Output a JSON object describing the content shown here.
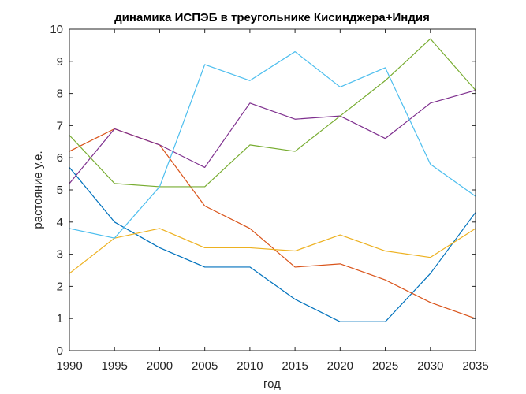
{
  "chart_data": {
    "type": "line",
    "title": "динамика ИСПЭБ в треугольнике Кисинджера+Индия",
    "xlabel": "год",
    "ylabel": "растояние у.е.",
    "xlim": [
      1990,
      2035
    ],
    "ylim": [
      0,
      10
    ],
    "x": [
      1990,
      1995,
      2000,
      2005,
      2010,
      2015,
      2020,
      2025,
      2030,
      2035
    ],
    "x_ticks": [
      1990,
      1995,
      2000,
      2005,
      2010,
      2015,
      2020,
      2025,
      2030,
      2035
    ],
    "y_ticks": [
      0,
      1,
      2,
      3,
      4,
      5,
      6,
      7,
      8,
      9,
      10
    ],
    "grid": false,
    "box": true,
    "series": [
      {
        "color": "#0072BD",
        "values": [
          5.7,
          4.0,
          3.2,
          2.6,
          2.6,
          1.6,
          0.9,
          0.9,
          2.4,
          4.3
        ]
      },
      {
        "color": "#D95319",
        "values": [
          6.2,
          6.9,
          6.4,
          4.5,
          3.8,
          2.6,
          2.7,
          2.2,
          1.5,
          1.0
        ]
      },
      {
        "color": "#EDB120",
        "values": [
          2.4,
          3.5,
          3.8,
          3.2,
          3.2,
          3.1,
          3.6,
          3.1,
          2.9,
          3.8
        ]
      },
      {
        "color": "#7E2F8E",
        "values": [
          5.2,
          6.9,
          6.4,
          5.7,
          7.7,
          7.2,
          7.3,
          6.6,
          7.7,
          8.1
        ]
      },
      {
        "color": "#77AC30",
        "values": [
          6.7,
          5.2,
          5.1,
          5.1,
          6.4,
          6.2,
          7.3,
          8.4,
          9.7,
          8.1
        ]
      },
      {
        "color": "#4DBEEE",
        "values": [
          3.8,
          3.5,
          5.1,
          8.9,
          8.4,
          9.3,
          8.2,
          8.8,
          5.8,
          4.8
        ]
      }
    ]
  }
}
